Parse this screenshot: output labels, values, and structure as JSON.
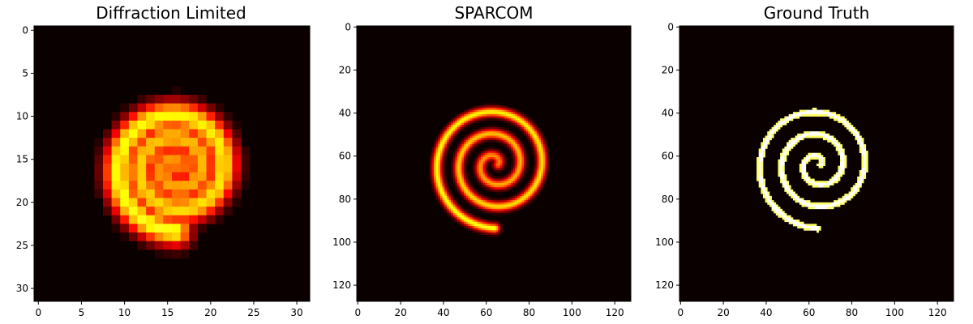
{
  "chart_data": [
    {
      "type": "heatmap",
      "title": "Diffraction Limited",
      "colormap": "hot",
      "xlim": [
        -0.5,
        31.5
      ],
      "ylim": [
        31.5,
        -0.5
      ],
      "xticks": [
        0,
        5,
        10,
        15,
        20,
        25,
        30
      ],
      "yticks": [
        0,
        5,
        10,
        15,
        20,
        25,
        30
      ],
      "image_size": 32,
      "spiral": {
        "center": [
          16,
          16
        ],
        "start_radius": 0.3,
        "growth": 2.55,
        "turns": 2.75,
        "width": 1.25
      }
    },
    {
      "type": "heatmap",
      "title": "SPARCOM",
      "colormap": "hot",
      "xlim": [
        -0.5,
        127.5
      ],
      "ylim": [
        127.5,
        -0.5
      ],
      "xticks": [
        0,
        20,
        40,
        60,
        80,
        100,
        120
      ],
      "yticks": [
        0,
        20,
        40,
        60,
        80,
        100,
        120
      ],
      "image_size": 128,
      "spiral": {
        "center": [
          64,
          64
        ],
        "start_radius": 1.5,
        "growth": 10.2,
        "turns": 2.75,
        "width": 1.6
      }
    },
    {
      "type": "heatmap",
      "title": "Ground Truth",
      "colormap": "hot",
      "xlim": [
        -0.5,
        127.5
      ],
      "ylim": [
        127.5,
        -0.5
      ],
      "xticks": [
        0,
        20,
        40,
        60,
        80,
        100,
        120
      ],
      "yticks": [
        0,
        20,
        40,
        60,
        80,
        100,
        120
      ],
      "image_size": 128,
      "spiral": {
        "center": [
          64,
          64
        ],
        "start_radius": 1.5,
        "growth": 10.2,
        "turns": 2.75,
        "width": 1.2
      }
    }
  ],
  "colors": {
    "background": "#0b0000",
    "low": "#c00000",
    "mid": "#ff7000",
    "high": "#ffff60",
    "peak": "#fffff0"
  }
}
